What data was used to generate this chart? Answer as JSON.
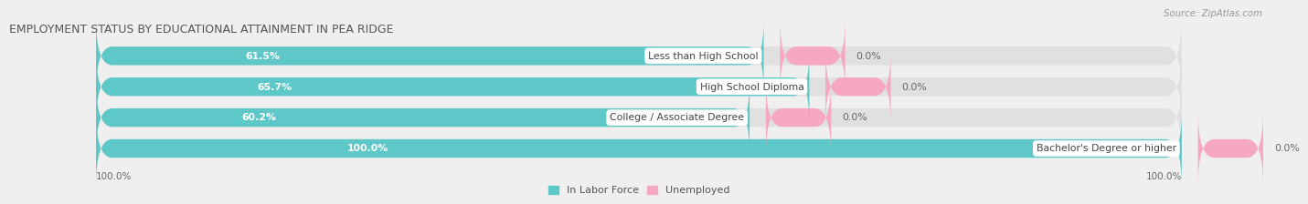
{
  "title": "EMPLOYMENT STATUS BY EDUCATIONAL ATTAINMENT IN PEA RIDGE",
  "source": "Source: ZipAtlas.com",
  "categories": [
    "Less than High School",
    "High School Diploma",
    "College / Associate Degree",
    "Bachelor's Degree or higher"
  ],
  "in_labor_force": [
    61.5,
    65.7,
    60.2,
    100.0
  ],
  "unemployed": [
    0.0,
    0.0,
    0.0,
    0.0
  ],
  "bar_color_labor": "#5ec8c8",
  "bar_color_unemployed": "#f5a8c0",
  "background_color": "#efefef",
  "bar_bg_color": "#e0e0e0",
  "title_fontsize": 9,
  "label_fontsize": 7.8,
  "legend_fontsize": 8,
  "axis_label_fontsize": 7.5,
  "x_left_label": "100.0%",
  "x_right_label": "100.0%",
  "bar_height": 0.6,
  "total_width": 100.0,
  "unemp_bar_width": 6.0
}
